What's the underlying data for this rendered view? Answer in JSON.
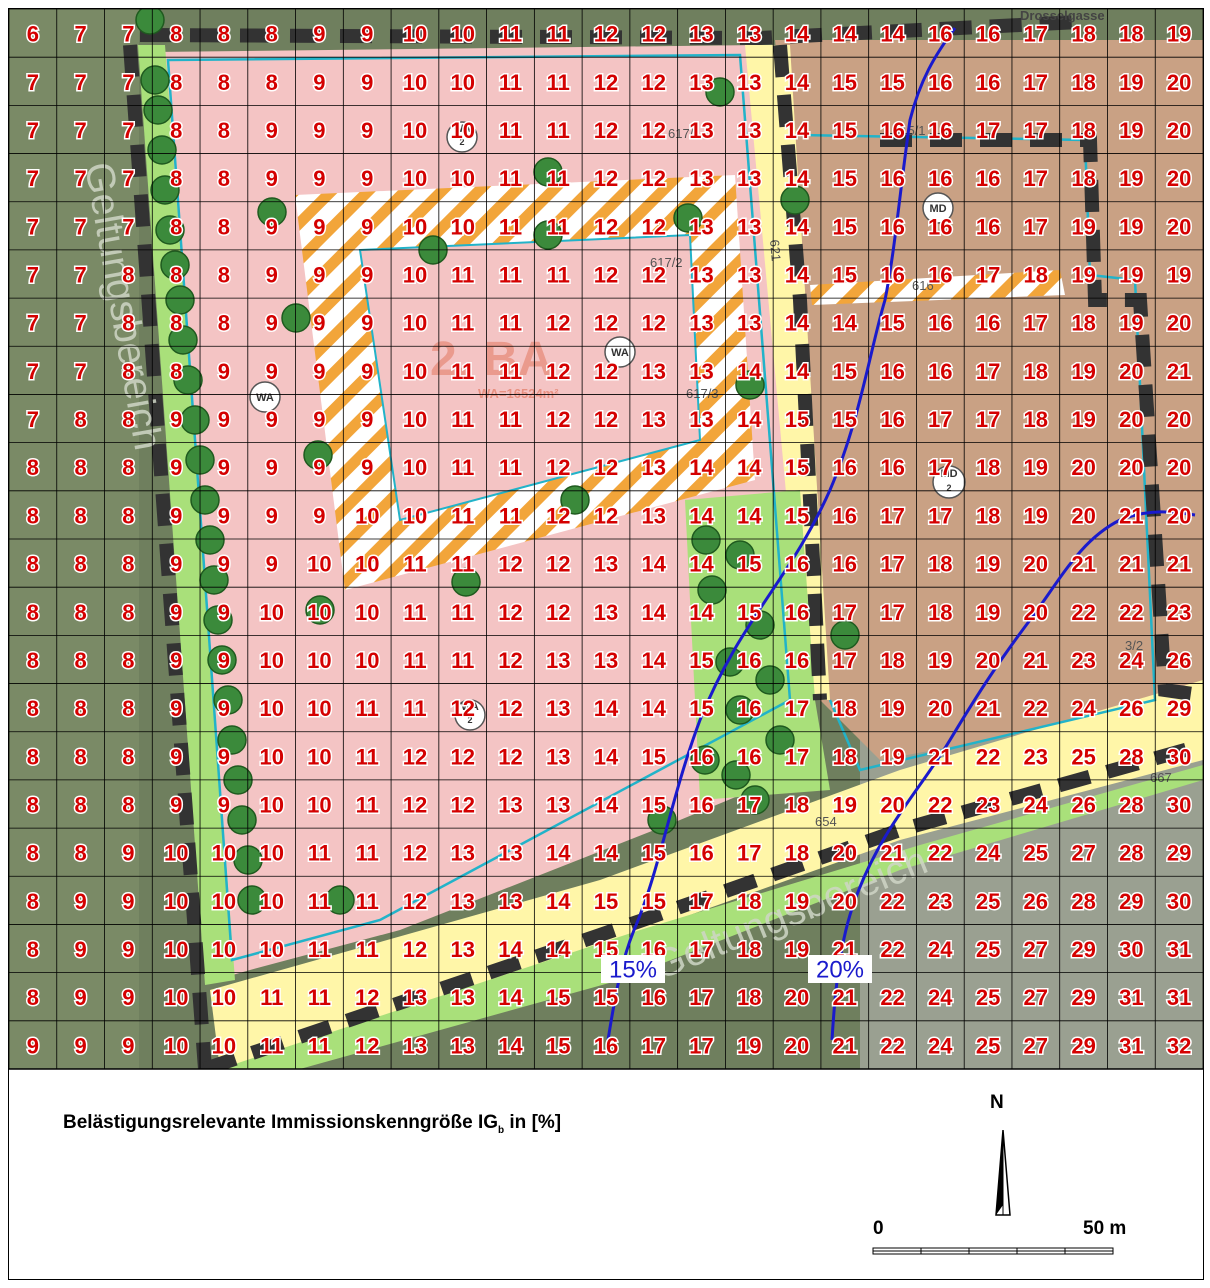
{
  "map": {
    "grid_values": [
      [
        6,
        7,
        7,
        8,
        8,
        8,
        9,
        9,
        10,
        10,
        11,
        11,
        12,
        12,
        13,
        13,
        14,
        14,
        14,
        16,
        16,
        17,
        18,
        18,
        19
      ],
      [
        7,
        7,
        7,
        8,
        8,
        8,
        9,
        9,
        10,
        10,
        11,
        11,
        12,
        12,
        13,
        13,
        14,
        15,
        15,
        16,
        16,
        17,
        18,
        19,
        20
      ],
      [
        7,
        7,
        7,
        8,
        8,
        9,
        9,
        9,
        10,
        10,
        11,
        11,
        12,
        12,
        13,
        13,
        14,
        15,
        16,
        16,
        17,
        17,
        18,
        19,
        20
      ],
      [
        7,
        7,
        7,
        8,
        8,
        9,
        9,
        9,
        10,
        10,
        11,
        11,
        12,
        12,
        13,
        13,
        14,
        15,
        16,
        16,
        16,
        17,
        18,
        19,
        20
      ],
      [
        7,
        7,
        7,
        8,
        8,
        9,
        9,
        9,
        10,
        10,
        11,
        11,
        12,
        12,
        13,
        13,
        14,
        15,
        16,
        16,
        16,
        17,
        19,
        19,
        20
      ],
      [
        7,
        7,
        8,
        8,
        8,
        9,
        9,
        9,
        10,
        11,
        11,
        11,
        12,
        12,
        13,
        13,
        14,
        15,
        16,
        16,
        17,
        18,
        19,
        19,
        19
      ],
      [
        7,
        7,
        8,
        8,
        8,
        9,
        9,
        9,
        10,
        11,
        11,
        12,
        12,
        12,
        13,
        13,
        14,
        14,
        15,
        16,
        16,
        17,
        18,
        19,
        20
      ],
      [
        7,
        7,
        8,
        8,
        9,
        9,
        9,
        9,
        10,
        11,
        11,
        12,
        12,
        13,
        13,
        14,
        14,
        15,
        16,
        16,
        17,
        18,
        19,
        20,
        21
      ],
      [
        7,
        8,
        8,
        9,
        9,
        9,
        9,
        9,
        10,
        11,
        11,
        12,
        12,
        13,
        13,
        14,
        15,
        15,
        16,
        17,
        17,
        18,
        19,
        20,
        20
      ],
      [
        8,
        8,
        8,
        9,
        9,
        9,
        9,
        9,
        10,
        11,
        11,
        12,
        12,
        13,
        14,
        14,
        15,
        16,
        16,
        17,
        18,
        19,
        20,
        20,
        20
      ],
      [
        8,
        8,
        8,
        9,
        9,
        9,
        9,
        10,
        10,
        11,
        11,
        12,
        12,
        13,
        14,
        14,
        15,
        16,
        17,
        17,
        18,
        19,
        20,
        21,
        20
      ],
      [
        8,
        8,
        8,
        9,
        9,
        9,
        10,
        10,
        11,
        11,
        12,
        12,
        13,
        14,
        14,
        15,
        16,
        16,
        17,
        18,
        19,
        20,
        21,
        21,
        21
      ],
      [
        8,
        8,
        8,
        9,
        9,
        10,
        10,
        10,
        11,
        11,
        12,
        12,
        13,
        14,
        14,
        15,
        16,
        17,
        17,
        18,
        19,
        20,
        22,
        22,
        23
      ],
      [
        8,
        8,
        8,
        9,
        9,
        10,
        10,
        10,
        11,
        11,
        12,
        13,
        13,
        14,
        15,
        16,
        16,
        17,
        18,
        19,
        20,
        21,
        23,
        24,
        26
      ],
      [
        8,
        8,
        8,
        9,
        9,
        10,
        10,
        11,
        11,
        12,
        12,
        13,
        14,
        14,
        15,
        16,
        17,
        18,
        19,
        20,
        21,
        22,
        24,
        26,
        29
      ],
      [
        8,
        8,
        8,
        9,
        9,
        10,
        10,
        11,
        12,
        12,
        12,
        13,
        14,
        15,
        16,
        16,
        17,
        18,
        19,
        21,
        22,
        23,
        25,
        28,
        30
      ],
      [
        8,
        8,
        8,
        9,
        9,
        10,
        10,
        11,
        12,
        12,
        13,
        13,
        14,
        15,
        16,
        17,
        18,
        19,
        20,
        22,
        23,
        24,
        26,
        28,
        30
      ],
      [
        8,
        8,
        9,
        10,
        10,
        10,
        11,
        11,
        12,
        13,
        13,
        14,
        14,
        15,
        16,
        17,
        18,
        20,
        21,
        22,
        24,
        25,
        27,
        28,
        29
      ],
      [
        8,
        9,
        9,
        10,
        10,
        10,
        11,
        11,
        12,
        13,
        13,
        14,
        15,
        15,
        17,
        18,
        19,
        20,
        22,
        23,
        25,
        26,
        28,
        29,
        30
      ],
      [
        8,
        9,
        9,
        10,
        10,
        10,
        11,
        11,
        12,
        13,
        14,
        14,
        15,
        16,
        17,
        18,
        19,
        21,
        22,
        24,
        25,
        27,
        29,
        30,
        31
      ],
      [
        8,
        9,
        9,
        10,
        10,
        11,
        11,
        12,
        13,
        13,
        14,
        15,
        15,
        16,
        17,
        18,
        20,
        21,
        22,
        24,
        25,
        27,
        29,
        31,
        31
      ],
      [
        9,
        9,
        9,
        10,
        10,
        11,
        11,
        12,
        13,
        13,
        14,
        15,
        16,
        17,
        17,
        19,
        20,
        21,
        22,
        24,
        25,
        27,
        29,
        31,
        32
      ]
    ],
    "isolines": [
      {
        "label": "15%",
        "color": "#1a1acc"
      },
      {
        "label": "20%",
        "color": "#1a1acc"
      }
    ],
    "labels": {
      "street_top": "Drosselgasse",
      "zone_wa": "WA",
      "zone_md": "MD",
      "zone_sub": "2",
      "ba": "2. BA",
      "geltungsbereich": "Geltungsbereich",
      "parcel_617_1": "617/1",
      "parcel_617_2": "617/2",
      "parcel_617_3": "617/3",
      "parcel_616": "616",
      "parcel_615_1": "615/1",
      "parcel_654": "654",
      "parcel_667": "667",
      "parcel_613": "613",
      "parcel_3_2": "3/2",
      "parcel_621": "621",
      "wa_area": "WA=16524m²"
    }
  },
  "legend": {
    "title_main": "Belästigungsrelevante Immissionskenngröße IG",
    "title_sub": "b",
    "title_unit": " in [%]"
  },
  "north_arrow": {
    "label": "N"
  },
  "scale_bar": {
    "start_label": "0",
    "end_label": "50 m"
  },
  "colors": {
    "grid_value": "#d40000",
    "isoline": "#1a1acc",
    "field_bg": "#6f7f5e",
    "building_plot": "#f4c4c4",
    "md_zone": "#c9a184",
    "green_strip": "#a9e07a",
    "road": "#fff6a8",
    "boundary": "#333333",
    "hatch": "#f2a53a",
    "tree": "#3b8a3b"
  }
}
